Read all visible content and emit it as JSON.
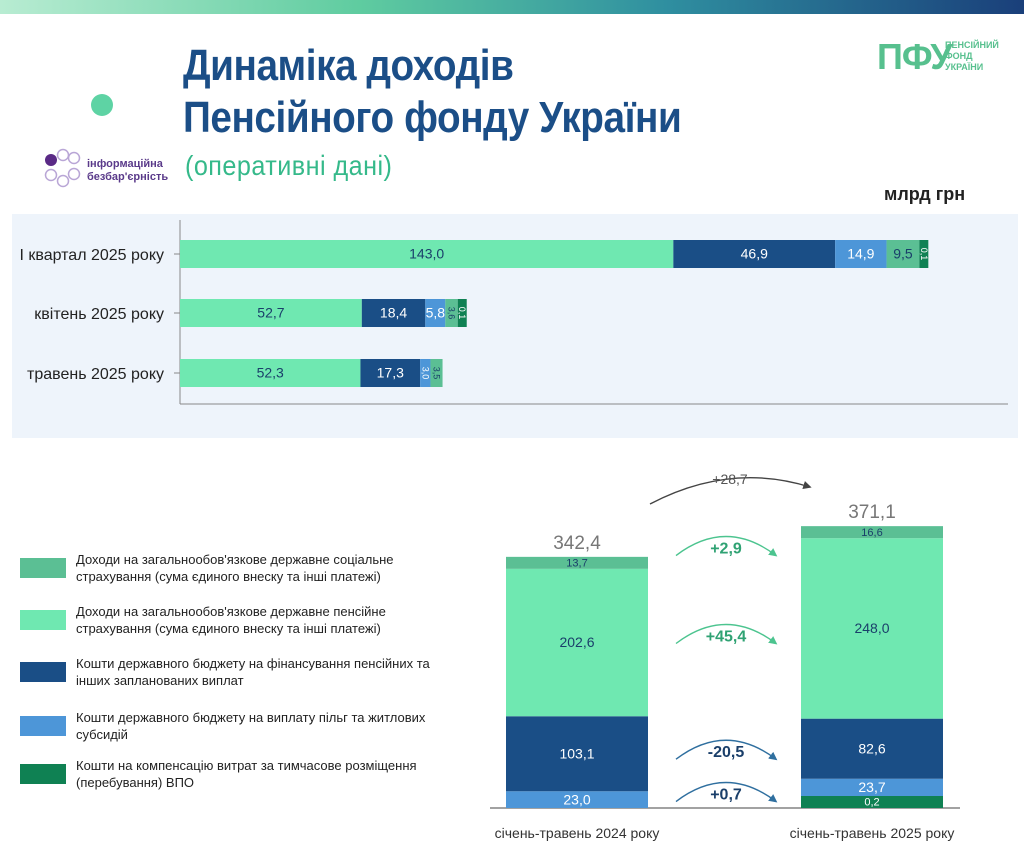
{
  "header": {
    "title_line1": "Динаміка доходів",
    "title_line2": "Пенсійного фонду України",
    "subtitle": "(оперативні дані)",
    "unit": "млрд грн"
  },
  "logos": {
    "ib_line1": "інформаційна",
    "ib_line2": "безбар'єрність",
    "pfu_abbr": "ПФУ",
    "pfu_line1": "ПЕНСІЙНИЙ",
    "pfu_line2": "ФОНД",
    "pfu_line3": "УКРАЇНИ"
  },
  "colors": {
    "social": "#5bbf94",
    "pension": "#6fe8b1",
    "budget_pension": "#1a4e86",
    "budget_benefits": "#4d96d8",
    "vpo": "#0f8153"
  },
  "legend": [
    {
      "key": "social",
      "label": "Доходи на загальнообов'язкове державне соціальне страхування (сума єдиного внеску та інші платежі)"
    },
    {
      "key": "pension",
      "label": "Доходи на загальнообов'язкове державне пенсійне страхування (сума єдиного внеску та інші платежі)"
    },
    {
      "key": "budget_pension",
      "label": "Кошти державного бюджету на фінансування пенсійних та інших запланованих виплат"
    },
    {
      "key": "budget_benefits",
      "label": "Кошти державного бюджету на виплату пільг та житлових субсидій"
    },
    {
      "key": "vpo",
      "label": "Кошти на компенсацію витрат за тимчасове розміщення (перебування) ВПО"
    }
  ],
  "chart_data": [
    {
      "type": "bar",
      "orientation": "horizontal",
      "stacked": true,
      "categories": [
        "І квартал 2025 року",
        "квітень 2025 року",
        "травень 2025 року"
      ],
      "series": [
        {
          "key": "pension",
          "values": [
            143.0,
            52.7,
            52.3
          ],
          "labels": [
            "143,0",
            "52,7",
            "52,3"
          ]
        },
        {
          "key": "budget_pension",
          "values": [
            46.9,
            18.4,
            17.3
          ],
          "labels": [
            "46,9",
            "18,4",
            "17,3"
          ]
        },
        {
          "key": "budget_benefits",
          "values": [
            14.9,
            5.8,
            3.0
          ],
          "labels": [
            "14,9",
            "5,8",
            "3,0"
          ]
        },
        {
          "key": "social",
          "values": [
            9.5,
            3.6,
            3.5
          ],
          "labels": [
            "9,5",
            "3,6",
            "3,5"
          ]
        },
        {
          "key": "vpo",
          "values": [
            0.1,
            0.1,
            0
          ],
          "labels": [
            "0,1",
            "0,1",
            ""
          ]
        }
      ],
      "xlim": [
        0,
        240
      ]
    },
    {
      "type": "bar",
      "orientation": "vertical",
      "stacked": true,
      "categories": [
        "січень-травень 2024 року",
        "січень-травень 2025 року"
      ],
      "totals": [
        342.4,
        371.1
      ],
      "total_labels": [
        "342,4",
        "371,1"
      ],
      "series": [
        {
          "key": "vpo",
          "values": [
            0,
            0.2
          ],
          "labels": [
            "",
            "0,2"
          ]
        },
        {
          "key": "budget_benefits",
          "values": [
            23.0,
            23.7
          ],
          "labels": [
            "23,0",
            "23,7"
          ]
        },
        {
          "key": "budget_pension",
          "values": [
            103.1,
            82.6
          ],
          "labels": [
            "103,1",
            "82,6"
          ]
        },
        {
          "key": "pension",
          "values": [
            202.6,
            248.0
          ],
          "labels": [
            "202,6",
            "248,0"
          ]
        },
        {
          "key": "social",
          "values": [
            13.7,
            16.6
          ],
          "labels": [
            "13,7",
            "16,6"
          ]
        }
      ],
      "changes": [
        {
          "key": "total",
          "label": "+28,7"
        },
        {
          "key": "social",
          "label": "+2,9"
        },
        {
          "key": "pension",
          "label": "+45,4"
        },
        {
          "key": "budget_pension",
          "label": "-20,5"
        },
        {
          "key": "budget_benefits",
          "label": "+0,7"
        }
      ]
    }
  ]
}
